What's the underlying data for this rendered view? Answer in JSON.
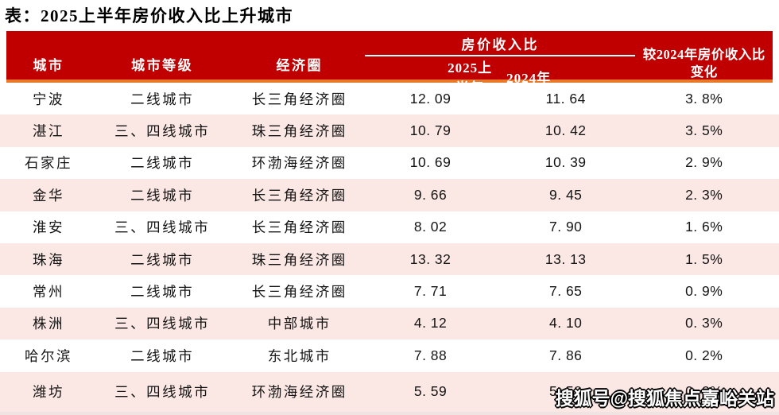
{
  "title": "表：2025上半年房价收入比上升城市",
  "header": {
    "city": "城市",
    "tier": "城市等级",
    "region": "经济圈",
    "ratio_group": "房价收入比",
    "h2025": "2025上半年",
    "h2024": "2024年",
    "change": "较2024年房价收入比变化"
  },
  "rows": [
    {
      "city": "宁波",
      "tier": "二线城市",
      "region": "长三角经济圈",
      "v2025": "12. 09",
      "v2024": "11. 64",
      "change": "3. 8%"
    },
    {
      "city": "湛江",
      "tier": "三、四线城市",
      "region": "珠三角经济圈",
      "v2025": "10. 79",
      "v2024": "10. 42",
      "change": "3. 5%"
    },
    {
      "city": "石家庄",
      "tier": "二线城市",
      "region": "环渤海经济圈",
      "v2025": "10. 69",
      "v2024": "10. 39",
      "change": "2. 9%"
    },
    {
      "city": "金华",
      "tier": "二线城市",
      "region": "长三角经济圈",
      "v2025": "9. 66",
      "v2024": "9. 45",
      "change": "2. 3%"
    },
    {
      "city": "淮安",
      "tier": "三、四线城市",
      "region": "长三角经济圈",
      "v2025": "8. 02",
      "v2024": "7. 90",
      "change": "1. 6%"
    },
    {
      "city": "珠海",
      "tier": "二线城市",
      "region": "珠三角经济圈",
      "v2025": "13. 32",
      "v2024": "13. 13",
      "change": "1. 5%"
    },
    {
      "city": "常州",
      "tier": "二线城市",
      "region": "长三角经济圈",
      "v2025": "7. 71",
      "v2024": "7. 65",
      "change": "0. 9%"
    },
    {
      "city": "株洲",
      "tier": "三、四线城市",
      "region": "中部城市",
      "v2025": "4. 12",
      "v2024": "4. 10",
      "change": "0. 3%"
    },
    {
      "city": "哈尔滨",
      "tier": "二线城市",
      "region": "东北城市",
      "v2025": "7. 88",
      "v2024": "7. 86",
      "change": "0. 2%"
    },
    {
      "city": "潍坊",
      "tier": "三、四线城市",
      "region": "环渤海经济圈",
      "v2025": "5. 59",
      "v2024": "5. 58",
      "change": "0. 2%"
    }
  ],
  "watermark": "搜狐号@搜狐焦点嘉峪关站",
  "colors": {
    "header_red": "#C00000",
    "accent_orange": "#E8792B",
    "row_pink": "#FBE7E3",
    "header_text": "#FFFFFF",
    "body_text": "#141414"
  },
  "chart_data": {
    "type": "table",
    "title": "表：2025上半年房价收入比上升城市",
    "columns": [
      "城市",
      "城市等级",
      "经济圈",
      "房价收入比 2025上半年",
      "房价收入比 2024年",
      "较2024年房价收入比变化"
    ],
    "rows": [
      [
        "宁波",
        "二线城市",
        "长三角经济圈",
        12.09,
        11.64,
        "3.8%"
      ],
      [
        "湛江",
        "三、四线城市",
        "珠三角经济圈",
        10.79,
        10.42,
        "3.5%"
      ],
      [
        "石家庄",
        "二线城市",
        "环渤海经济圈",
        10.69,
        10.39,
        "2.9%"
      ],
      [
        "金华",
        "二线城市",
        "长三角经济圈",
        9.66,
        9.45,
        "2.3%"
      ],
      [
        "淮安",
        "三、四线城市",
        "长三角经济圈",
        8.02,
        7.9,
        "1.6%"
      ],
      [
        "珠海",
        "二线城市",
        "珠三角经济圈",
        13.32,
        13.13,
        "1.5%"
      ],
      [
        "常州",
        "二线城市",
        "长三角经济圈",
        7.71,
        7.65,
        "0.9%"
      ],
      [
        "株洲",
        "三、四线城市",
        "中部城市",
        4.12,
        4.1,
        "0.3%"
      ],
      [
        "哈尔滨",
        "二线城市",
        "东北城市",
        7.88,
        7.86,
        "0.2%"
      ],
      [
        "潍坊",
        "三、四线城市",
        "环渤海经济圈",
        5.59,
        5.58,
        "0.2%"
      ]
    ]
  }
}
